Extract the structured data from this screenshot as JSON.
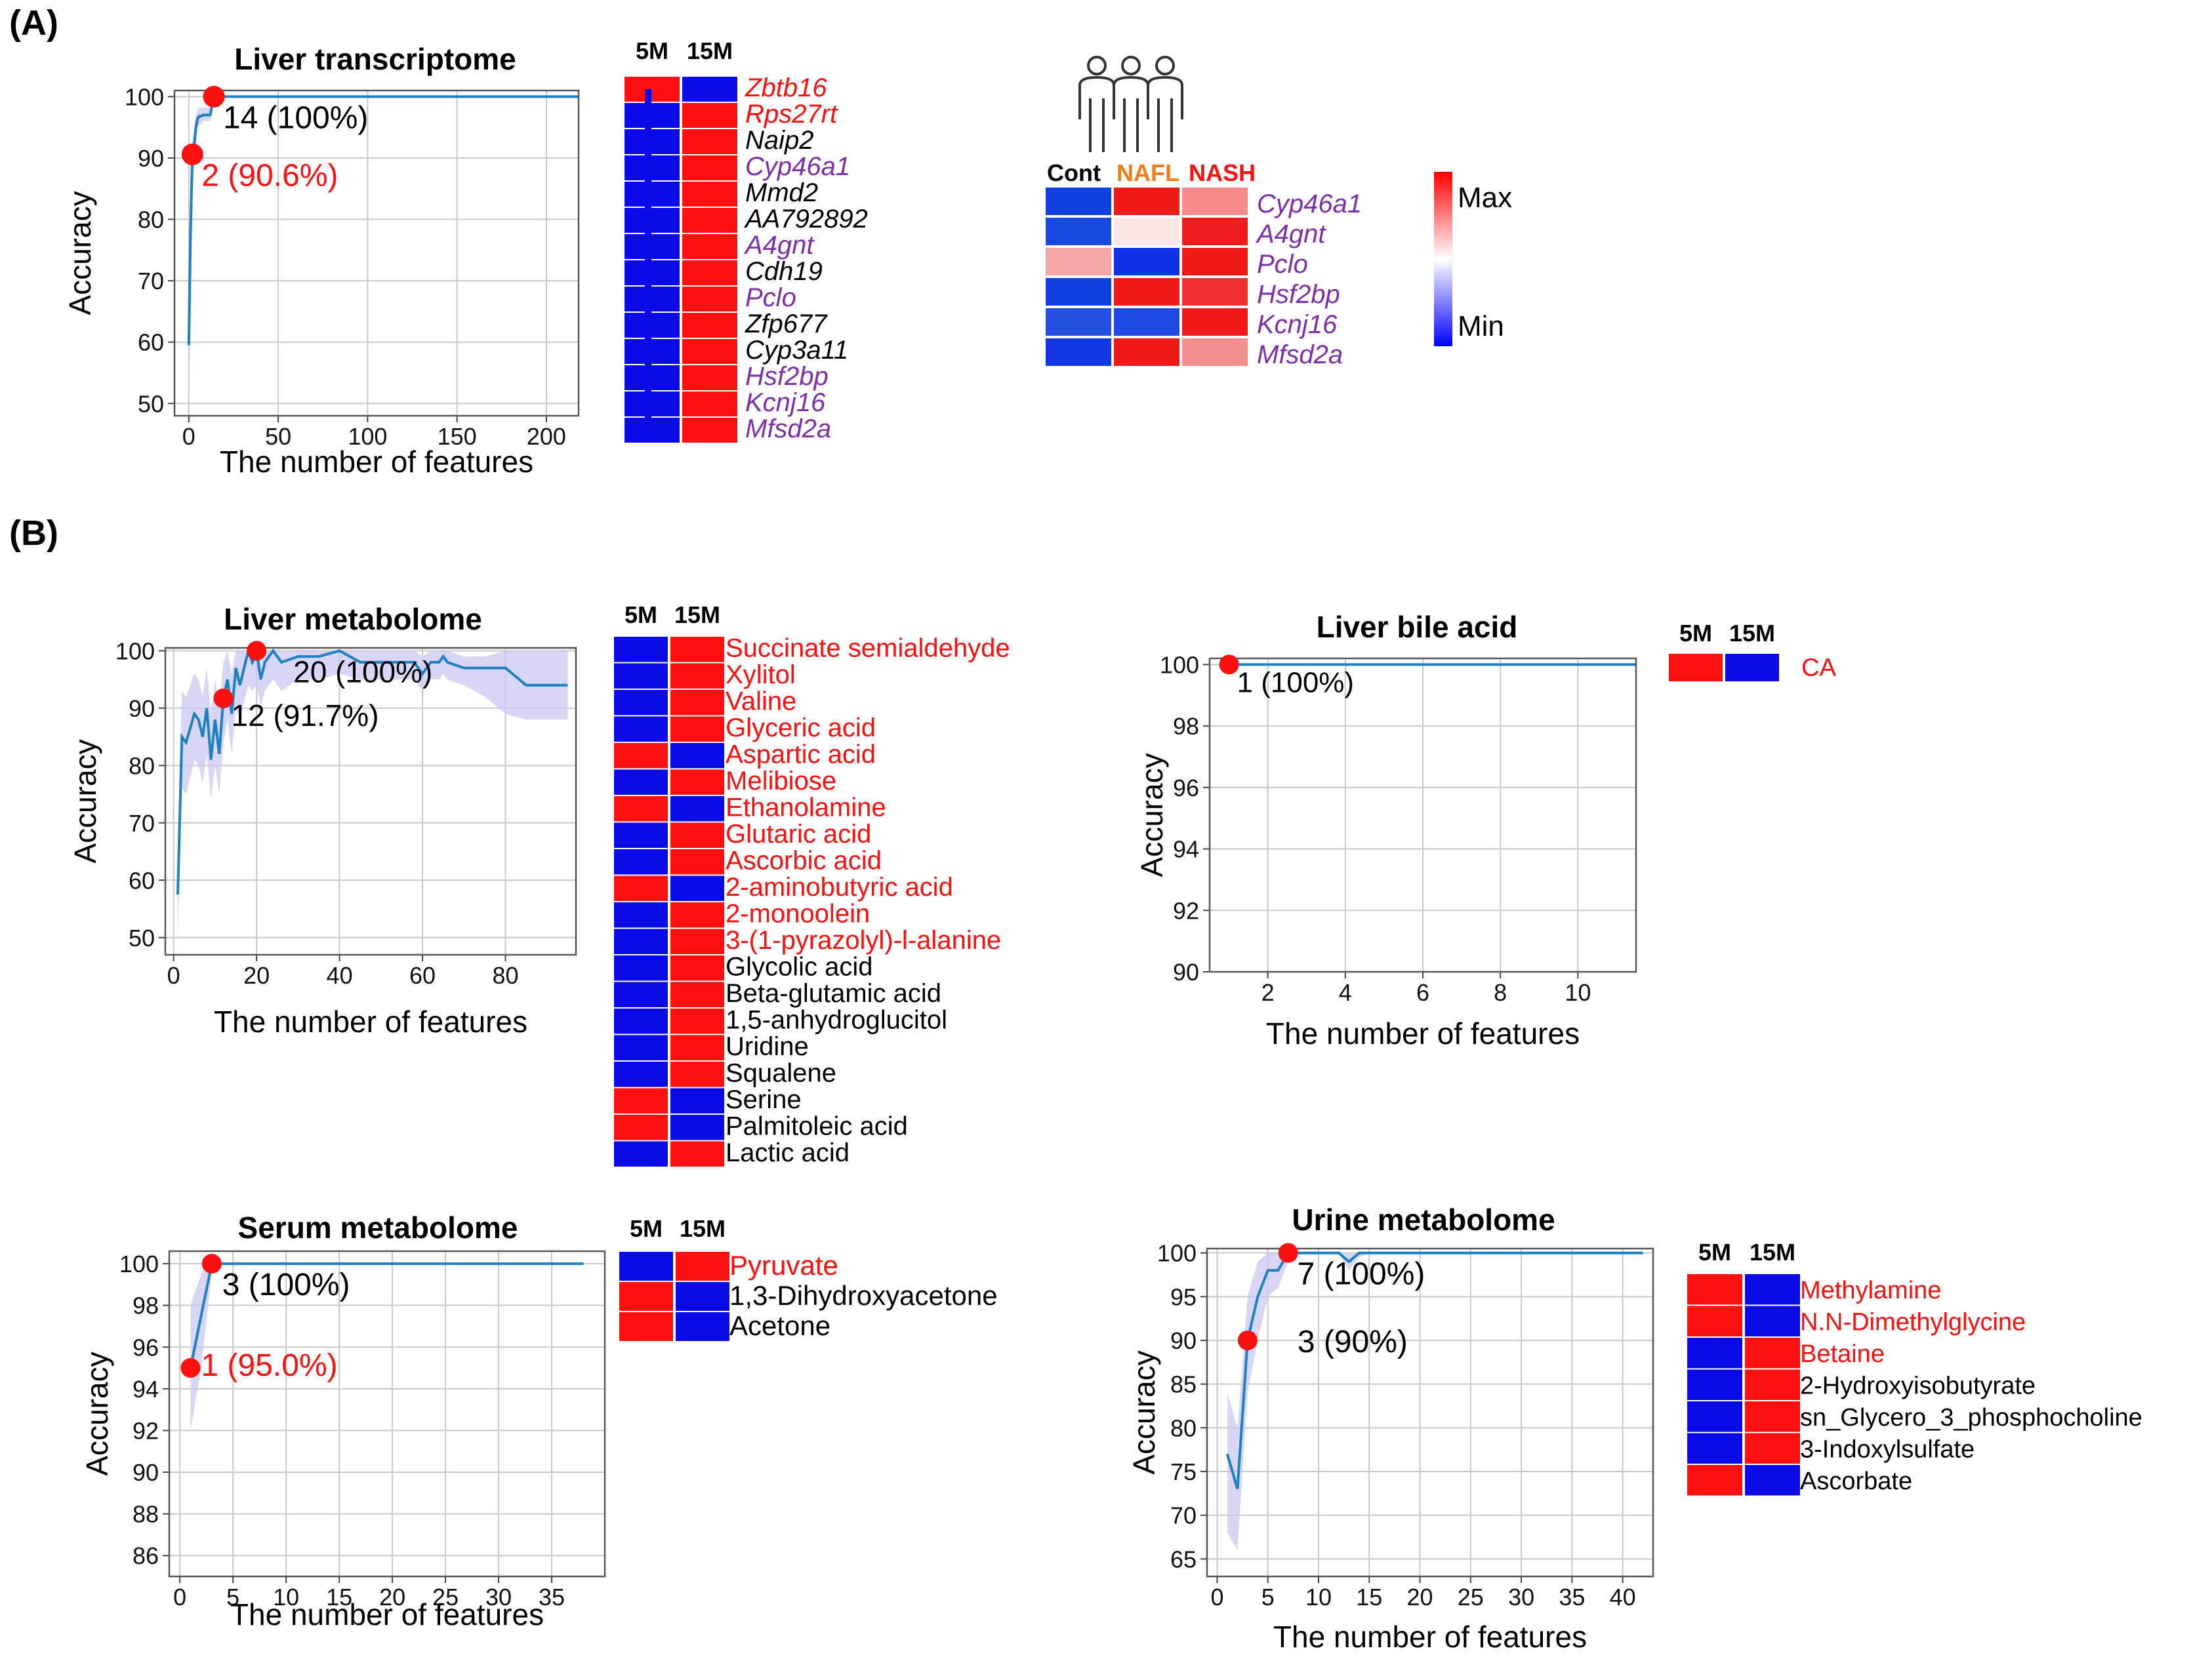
{
  "panels": {
    "a": "(A)",
    "b": "(B)"
  },
  "colors": {
    "red": "#ff1010",
    "blue": "#0a0ae6",
    "purple": "#7b2fa8",
    "line": "#1f7fc0",
    "band": "#c9c9f2",
    "orange": "#f07d1a",
    "grid": "#c8c8c8"
  },
  "cohort": {
    "groups": [
      "Cont",
      "NAFL",
      "NASH"
    ],
    "group_colors": [
      "#000000",
      "#f07d1a",
      "#ff1010"
    ],
    "legend_max": "Max",
    "legend_min": "Min",
    "rows": [
      {
        "label": "Cyp46a1",
        "color": "#7b2fa8",
        "cells": [
          "#1240e0",
          "#f01818",
          "#f58a8a"
        ]
      },
      {
        "label": "A4gnt",
        "color": "#7b2fa8",
        "cells": [
          "#1a48e2",
          "#fbe6e6",
          "#ee1c1c"
        ]
      },
      {
        "label": "Pclo",
        "color": "#7b2fa8",
        "cells": [
          "#f6a6a6",
          "#1030e6",
          "#f01818"
        ]
      },
      {
        "label": "Hsf2bp",
        "color": "#7b2fa8",
        "cells": [
          "#1240e0",
          "#f01818",
          "#f03030"
        ]
      },
      {
        "label": "Kcnj16",
        "color": "#7b2fa8",
        "cells": [
          "#2250e0",
          "#2048e2",
          "#f01818"
        ]
      },
      {
        "label": "Mfsd2a",
        "color": "#7b2fa8",
        "cells": [
          "#1238e4",
          "#f01818",
          "#f38f8f"
        ]
      }
    ]
  },
  "chart_data": [
    {
      "id": "liver-transcriptome",
      "type": "line",
      "title": "Liver transcriptome",
      "xlabel": "The number of features",
      "ylabel": "Accuracy",
      "xlim": [
        -8,
        218
      ],
      "ylim": [
        48,
        101
      ],
      "xticks": [
        0,
        50,
        100,
        150,
        200
      ],
      "yticks": [
        50,
        60,
        70,
        80,
        90,
        100
      ],
      "x": [
        0,
        1,
        2,
        3,
        4,
        5,
        6,
        7,
        8,
        9,
        10,
        11,
        12,
        13,
        14,
        20,
        40,
        80,
        120,
        160,
        200,
        218
      ],
      "y": [
        59.5,
        78,
        90.6,
        92,
        95,
        96.5,
        96.8,
        96.8,
        97,
        97,
        97,
        97,
        97,
        98.5,
        100,
        100,
        100,
        100,
        100,
        100,
        100,
        100
      ],
      "band_low": [
        48,
        66,
        86,
        89,
        93,
        95,
        95.5,
        95.5,
        96,
        96,
        96,
        96,
        96,
        97.5,
        100,
        100,
        100,
        100,
        100,
        100,
        100,
        100
      ],
      "band_high": [
        62,
        86,
        93,
        95,
        97,
        98,
        98.2,
        98.2,
        98.2,
        98.2,
        98.2,
        98.2,
        98.2,
        99.5,
        100,
        100,
        100,
        100,
        100,
        100,
        100,
        100
      ],
      "points": [
        {
          "x": 14,
          "y": 100,
          "label": "14 (100%)",
          "label_color": "#000000"
        },
        {
          "x": 2,
          "y": 90.6,
          "label": "2 (90.6%)",
          "label_color": "#ff1010"
        }
      ]
    },
    {
      "id": "liver-metabolome",
      "type": "line",
      "title": "Liver metabolome",
      "xlabel": "The number of features",
      "ylabel": "Accuracy",
      "xlim": [
        -2,
        97
      ],
      "ylim": [
        47,
        100.5
      ],
      "xticks": [
        0,
        20,
        40,
        60,
        80
      ],
      "yticks": [
        50,
        60,
        70,
        80,
        90,
        100
      ],
      "x": [
        1,
        2,
        3,
        4,
        5,
        6,
        7,
        8,
        9,
        10,
        11,
        12,
        13,
        14,
        15,
        16,
        17,
        18,
        19,
        20,
        21,
        22,
        23,
        24,
        26,
        30,
        35,
        40,
        45,
        50,
        55,
        58,
        60,
        62,
        64,
        65,
        66,
        70,
        75,
        80,
        85,
        90,
        95
      ],
      "y": [
        57.5,
        85,
        84,
        86.5,
        89,
        88,
        85,
        90,
        81,
        88,
        82,
        91.7,
        95,
        89,
        97,
        94,
        97,
        100,
        98,
        100,
        95,
        98,
        99,
        100,
        98,
        99,
        99,
        100,
        98,
        98,
        98,
        98,
        96,
        98,
        98,
        99,
        98,
        97,
        97,
        97,
        94,
        94,
        94
      ],
      "band_low": [
        50,
        76,
        75,
        78,
        81,
        80,
        77,
        82,
        74,
        80,
        75,
        84,
        88,
        82,
        90,
        88,
        91,
        94,
        93,
        94,
        90,
        93,
        94,
        95,
        93,
        95,
        95,
        96,
        95,
        95,
        95,
        95,
        93,
        95,
        95,
        96,
        95,
        94,
        92,
        89,
        88,
        88,
        88
      ],
      "band_high": [
        65,
        93,
        92,
        94,
        96,
        95,
        92,
        97,
        89,
        95,
        90,
        98,
        100,
        96,
        100,
        100,
        100,
        100,
        100,
        100,
        100,
        100,
        100,
        100,
        100,
        100,
        100,
        100,
        100,
        100,
        100,
        100,
        99,
        100,
        100,
        100,
        100,
        99,
        99,
        100,
        100,
        100,
        100
      ],
      "points": [
        {
          "x": 20,
          "y": 100,
          "label": "20 (100%)",
          "label_color": "#000000"
        },
        {
          "x": 12,
          "y": 91.7,
          "label": "12 (91.7%)",
          "label_color": "#000000"
        }
      ]
    },
    {
      "id": "liver-bile-acid",
      "type": "line",
      "title": "Liver bile acid",
      "xlabel": "The number of features",
      "ylabel": "Accuracy",
      "xlim": [
        0.5,
        11.5
      ],
      "ylim": [
        90,
        100.2
      ],
      "xticks": [
        2,
        4,
        6,
        8,
        10
      ],
      "yticks": [
        90,
        92,
        94,
        96,
        98,
        100
      ],
      "x": [
        1,
        2,
        4,
        6,
        8,
        10,
        11.5
      ],
      "y": [
        100,
        100,
        100,
        100,
        100,
        100,
        100
      ],
      "band_low": [],
      "band_high": [],
      "points": [
        {
          "x": 1,
          "y": 100,
          "label": "1 (100%)",
          "label_color": "#000000"
        }
      ]
    },
    {
      "id": "serum-metabolome",
      "type": "line",
      "title": "Serum metabolome",
      "xlabel": "The number of features",
      "ylabel": "Accuracy",
      "xlim": [
        -1,
        40
      ],
      "ylim": [
        85,
        100.6
      ],
      "xticks": [
        0,
        5,
        10,
        15,
        20,
        25,
        30,
        35
      ],
      "yticks": [
        86,
        88,
        90,
        92,
        94,
        96,
        98,
        100
      ],
      "x": [
        1,
        2,
        3,
        4,
        5,
        10,
        15,
        20,
        25,
        30,
        35,
        38
      ],
      "y": [
        95,
        97.5,
        100,
        100,
        100,
        100,
        100,
        100,
        100,
        100,
        100,
        100
      ],
      "band_low": [
        92,
        95,
        99.5,
        100,
        100,
        100,
        100,
        100,
        100,
        100,
        100,
        100
      ],
      "band_high": [
        98,
        99.5,
        100.4,
        100,
        100,
        100,
        100,
        100,
        100,
        100,
        100,
        100
      ],
      "points": [
        {
          "x": 3,
          "y": 100,
          "label": "3 (100%)",
          "label_color": "#000000"
        },
        {
          "x": 1,
          "y": 95.0,
          "label": "1 (95.0%)",
          "label_color": "#ff1010"
        }
      ]
    },
    {
      "id": "urine-metabolome",
      "type": "line",
      "title": "Urine metabolome",
      "xlabel": "The number of features",
      "ylabel": "Accuracy",
      "xlim": [
        -1,
        43
      ],
      "ylim": [
        63,
        100.5
      ],
      "xticks": [
        0,
        5,
        10,
        15,
        20,
        25,
        30,
        35,
        40
      ],
      "yticks": [
        65,
        70,
        75,
        80,
        85,
        90,
        95,
        100
      ],
      "x": [
        1,
        2,
        3,
        4,
        5,
        6,
        7,
        8,
        10,
        12,
        13,
        14,
        15,
        20,
        30,
        42
      ],
      "y": [
        77,
        73,
        90,
        95,
        98,
        98,
        100,
        100,
        100,
        100,
        99,
        100,
        100,
        100,
        100,
        100
      ],
      "band_low": [
        68,
        66,
        84,
        90,
        95,
        96,
        99,
        100,
        100,
        100,
        98,
        99.5,
        100,
        100,
        100,
        100
      ],
      "band_high": [
        84,
        80,
        95,
        99,
        100,
        100,
        100,
        100,
        100,
        100,
        100,
        100,
        100,
        100,
        100,
        100
      ],
      "points": [
        {
          "x": 7,
          "y": 100,
          "label": "7 (100%)",
          "label_color": "#000000"
        },
        {
          "x": 3,
          "y": 90,
          "label": "3 (90%)",
          "label_color": "#000000"
        }
      ]
    }
  ],
  "heatmaps": [
    {
      "id": "transcriptome-heatmap",
      "columns": [
        "5M",
        "15M"
      ],
      "italic": true,
      "rows": [
        {
          "label": "Zbtb16",
          "color": "#ff1010",
          "cells": [
            "red",
            "blue"
          ]
        },
        {
          "label": "Rps27rt",
          "color": "#ff1010",
          "cells": [
            "blue",
            "red"
          ]
        },
        {
          "label": "Naip2",
          "color": "#000000",
          "cells": [
            "blue",
            "red"
          ]
        },
        {
          "label": "Cyp46a1",
          "color": "#7b2fa8",
          "cells": [
            "blue",
            "red"
          ]
        },
        {
          "label": "Mmd2",
          "color": "#000000",
          "cells": [
            "blue",
            "red"
          ]
        },
        {
          "label": "AA792892",
          "color": "#000000",
          "cells": [
            "blue",
            "red"
          ]
        },
        {
          "label": "A4gnt",
          "color": "#7b2fa8",
          "cells": [
            "blue",
            "red"
          ]
        },
        {
          "label": "Cdh19",
          "color": "#000000",
          "cells": [
            "blue",
            "red"
          ]
        },
        {
          "label": "Pclo",
          "color": "#7b2fa8",
          "cells": [
            "blue",
            "red"
          ]
        },
        {
          "label": "Zfp677",
          "color": "#000000",
          "cells": [
            "blue",
            "red"
          ]
        },
        {
          "label": "Cyp3a11",
          "color": "#000000",
          "cells": [
            "blue",
            "red"
          ]
        },
        {
          "label": "Hsf2bp",
          "color": "#7b2fa8",
          "cells": [
            "blue",
            "red"
          ]
        },
        {
          "label": "Kcnj16",
          "color": "#7b2fa8",
          "cells": [
            "blue",
            "red"
          ]
        },
        {
          "label": "Mfsd2a",
          "color": "#7b2fa8",
          "cells": [
            "blue",
            "red"
          ]
        }
      ]
    },
    {
      "id": "liver-metabolome-heatmap",
      "columns": [
        "5M",
        "15M"
      ],
      "italic": false,
      "rows": [
        {
          "label": "Succinate semialdehyde",
          "color": "#ff1010",
          "cells": [
            "blue",
            "red"
          ]
        },
        {
          "label": "Xylitol",
          "color": "#ff1010",
          "cells": [
            "blue",
            "red"
          ]
        },
        {
          "label": "Valine",
          "color": "#ff1010",
          "cells": [
            "blue",
            "red"
          ]
        },
        {
          "label": "Glyceric acid",
          "color": "#ff1010",
          "cells": [
            "blue",
            "red"
          ]
        },
        {
          "label": "Aspartic acid",
          "color": "#ff1010",
          "cells": [
            "red",
            "blue"
          ]
        },
        {
          "label": "Melibiose",
          "color": "#ff1010",
          "cells": [
            "blue",
            "red"
          ]
        },
        {
          "label": "Ethanolamine",
          "color": "#ff1010",
          "cells": [
            "red",
            "blue"
          ]
        },
        {
          "label": "Glutaric acid",
          "color": "#ff1010",
          "cells": [
            "blue",
            "red"
          ]
        },
        {
          "label": "Ascorbic acid",
          "color": "#ff1010",
          "cells": [
            "blue",
            "red"
          ]
        },
        {
          "label": "2-aminobutyric acid",
          "color": "#ff1010",
          "cells": [
            "red",
            "blue"
          ]
        },
        {
          "label": "2-monoolein",
          "color": "#ff1010",
          "cells": [
            "blue",
            "red"
          ]
        },
        {
          "label": "3-(1-pyrazolyl)-l-alanine",
          "color": "#ff1010",
          "cells": [
            "blue",
            "red"
          ]
        },
        {
          "label": "Glycolic acid",
          "color": "#000000",
          "cells": [
            "blue",
            "red"
          ]
        },
        {
          "label": "Beta-glutamic acid",
          "color": "#000000",
          "cells": [
            "blue",
            "red"
          ]
        },
        {
          "label": "1,5-anhydroglucitol",
          "color": "#000000",
          "cells": [
            "blue",
            "red"
          ]
        },
        {
          "label": "Uridine",
          "color": "#000000",
          "cells": [
            "blue",
            "red"
          ]
        },
        {
          "label": "Squalene",
          "color": "#000000",
          "cells": [
            "blue",
            "red"
          ]
        },
        {
          "label": "Serine",
          "color": "#000000",
          "cells": [
            "red",
            "blue"
          ]
        },
        {
          "label": "Palmitoleic acid",
          "color": "#000000",
          "cells": [
            "red",
            "blue"
          ]
        },
        {
          "label": "Lactic acid",
          "color": "#000000",
          "cells": [
            "blue",
            "red"
          ]
        }
      ]
    },
    {
      "id": "bile-acid-heatmap",
      "columns": [
        "5M",
        "15M"
      ],
      "italic": false,
      "rows": [
        {
          "label": "CA",
          "color": "#ff1010",
          "cells": [
            "red",
            "blue"
          ]
        }
      ]
    },
    {
      "id": "serum-heatmap",
      "columns": [
        "5M",
        "15M"
      ],
      "italic": false,
      "rows": [
        {
          "label": "Pyruvate",
          "color": "#ff1010",
          "cells": [
            "blue",
            "red"
          ]
        },
        {
          "label": "1,3-Dihydroxyacetone",
          "color": "#000000",
          "cells": [
            "red",
            "blue"
          ]
        },
        {
          "label": "Acetone",
          "color": "#000000",
          "cells": [
            "red",
            "blue"
          ]
        }
      ]
    },
    {
      "id": "urine-heatmap",
      "columns": [
        "5M",
        "15M"
      ],
      "italic": false,
      "rows": [
        {
          "label": "Methylamine",
          "color": "#ff1010",
          "cells": [
            "red",
            "blue"
          ]
        },
        {
          "label": "N.N-Dimethylglycine",
          "color": "#ff1010",
          "cells": [
            "red",
            "blue"
          ]
        },
        {
          "label": "Betaine",
          "color": "#ff1010",
          "cells": [
            "blue",
            "red"
          ]
        },
        {
          "label": "2-Hydroxyisobutyrate",
          "color": "#000000",
          "cells": [
            "blue",
            "red"
          ]
        },
        {
          "label": "sn_Glycero_3_phosphocholine",
          "color": "#000000",
          "cells": [
            "blue",
            "red"
          ]
        },
        {
          "label": "3-Indoxylsulfate",
          "color": "#000000",
          "cells": [
            "blue",
            "red"
          ]
        },
        {
          "label": "Ascorbate",
          "color": "#000000",
          "cells": [
            "red",
            "blue"
          ]
        }
      ]
    }
  ]
}
